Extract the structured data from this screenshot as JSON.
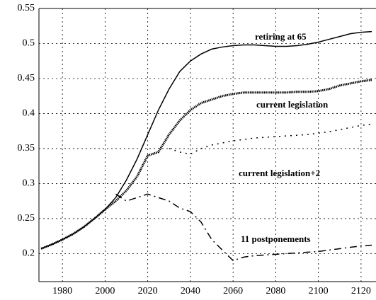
{
  "chart_data": {
    "type": "line",
    "x": [
      1970,
      1975,
      1980,
      1985,
      1990,
      1995,
      2000,
      2005,
      2010,
      2015,
      2020,
      2025,
      2030,
      2035,
      2040,
      2045,
      2050,
      2055,
      2060,
      2065,
      2070,
      2075,
      2080,
      2085,
      2090,
      2095,
      2100,
      2105,
      2110,
      2115,
      2120,
      2125
    ],
    "series": [
      {
        "name": "retiring at 65",
        "color": "#000000",
        "values": [
          0.207,
          0.213,
          0.22,
          0.228,
          0.238,
          0.25,
          0.263,
          0.28,
          0.305,
          0.335,
          0.37,
          0.405,
          0.435,
          0.46,
          0.475,
          0.485,
          0.492,
          0.495,
          0.497,
          0.498,
          0.498,
          0.497,
          0.496,
          0.496,
          0.497,
          0.499,
          0.502,
          0.506,
          0.51,
          0.514,
          0.516,
          0.517
        ]
      },
      {
        "name": "current legislation",
        "color": "#000000",
        "values": [
          0.207,
          0.213,
          0.22,
          0.228,
          0.238,
          0.25,
          0.263,
          0.275,
          0.29,
          0.31,
          0.34,
          0.345,
          0.37,
          0.39,
          0.405,
          0.415,
          0.42,
          0.425,
          0.428,
          0.43,
          0.43,
          0.43,
          0.43,
          0.43,
          0.431,
          0.431,
          0.432,
          0.435,
          0.44,
          0.443,
          0.446,
          0.448
        ]
      },
      {
        "name": "current legislation+2",
        "color": "#000000",
        "values": [
          null,
          null,
          null,
          null,
          null,
          null,
          null,
          null,
          null,
          null,
          null,
          null,
          0.35,
          0.345,
          0.342,
          0.35,
          0.355,
          0.358,
          0.361,
          0.363,
          0.365,
          0.366,
          0.367,
          0.368,
          0.369,
          0.37,
          0.372,
          0.374,
          0.377,
          0.38,
          0.383,
          0.385
        ]
      },
      {
        "name": "11 postponements",
        "color": "#000000",
        "values": [
          null,
          null,
          null,
          null,
          null,
          null,
          null,
          0.285,
          0.275,
          0.28,
          0.285,
          0.28,
          0.275,
          0.265,
          0.26,
          0.245,
          0.22,
          0.205,
          0.19,
          0.195,
          0.197,
          0.198,
          0.199,
          0.2,
          0.201,
          0.202,
          0.203,
          0.205,
          0.207,
          0.209,
          0.211,
          0.212
        ]
      }
    ],
    "xlim": [
      1969,
      2127
    ],
    "xticks": [
      1980,
      2000,
      2020,
      2040,
      2060,
      2080,
      2100,
      2120
    ],
    "ylim": [
      0.16,
      0.55
    ],
    "yticks": [
      0.2,
      0.25,
      0.3,
      0.35,
      0.4,
      0.45,
      0.5,
      0.55
    ],
    "grid": true
  }
}
